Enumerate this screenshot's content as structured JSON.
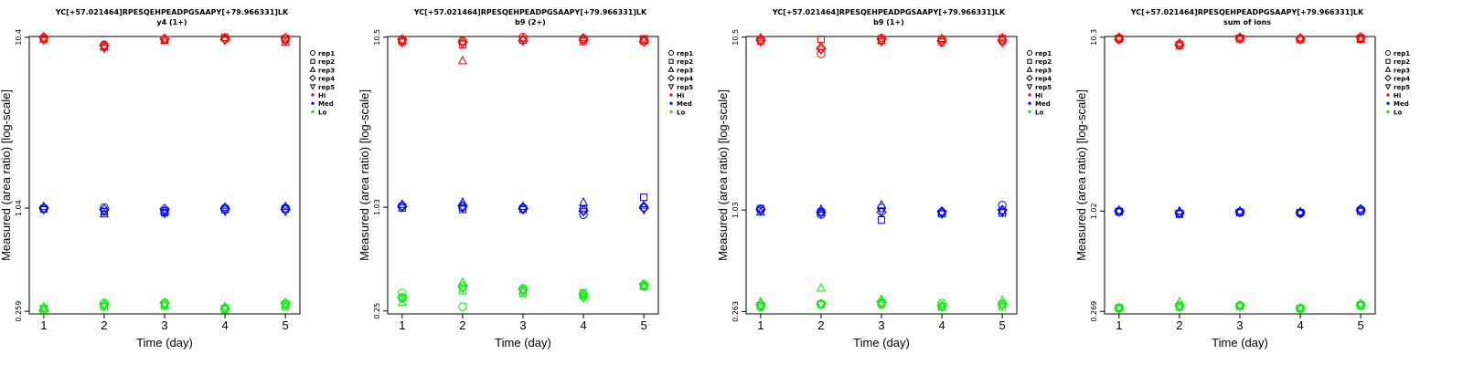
{
  "colors": {
    "Hi": "#ff0000",
    "Med": "#0000ff",
    "Lo": "#00ee00",
    "axis": "#000000"
  },
  "legend": [
    {
      "label": "rep1",
      "symbol": "circle"
    },
    {
      "label": "rep2",
      "symbol": "square"
    },
    {
      "label": "rep3",
      "symbol": "triangle-up"
    },
    {
      "label": "rep4",
      "symbol": "diamond"
    },
    {
      "label": "rep5",
      "symbol": "triangle-down"
    },
    {
      "label": "Hi",
      "symbol": "dot",
      "color": "Hi"
    },
    {
      "label": "Med",
      "symbol": "dot",
      "color": "Med"
    },
    {
      "label": "Lo",
      "symbol": "dot",
      "color": "Lo"
    }
  ],
  "chart_data": [
    {
      "type": "scatter",
      "title": "YC[+57.021464]RPESQEHPEADPGSAAPY[+79.966331]LK",
      "subtitle": "y4 (1+)",
      "xlabel": "Time (day)",
      "ylabel": "Measured (area ratio) [log-scale]",
      "x": [
        1,
        2,
        3,
        4,
        5
      ],
      "xticks": [
        "1",
        "2",
        "3",
        "4",
        "5"
      ],
      "yscale": "log",
      "yticks": [
        "0.259",
        "1.04",
        "10.4"
      ],
      "ylim": [
        0.25,
        10.5
      ],
      "series": [
        {
          "name": "Hi",
          "reps": [
            {
              "rep": "rep1",
              "values": [
                10.3,
                9.4,
                10.1,
                10.2,
                10.0
              ]
            },
            {
              "rep": "rep2",
              "values": [
                10.2,
                9.1,
                10.0,
                10.4,
                10.2
              ]
            },
            {
              "rep": "rep3",
              "values": [
                10.1,
                9.2,
                9.9,
                10.3,
                9.7
              ]
            },
            {
              "rep": "rep4",
              "values": [
                10.4,
                9.3,
                10.2,
                10.1,
                10.3
              ]
            },
            {
              "rep": "rep5",
              "values": [
                10.0,
                9.0,
                10.1,
                10.0,
                9.9
              ]
            }
          ]
        },
        {
          "name": "Med",
          "reps": [
            {
              "rep": "rep1",
              "values": [
                1.04,
                1.05,
                1.0,
                1.04,
                1.04
              ]
            },
            {
              "rep": "rep2",
              "values": [
                1.03,
                0.99,
                0.98,
                1.02,
                1.03
              ]
            },
            {
              "rep": "rep3",
              "values": [
                1.06,
                0.96,
                1.0,
                1.05,
                1.06
              ]
            },
            {
              "rep": "rep4",
              "values": [
                1.04,
                1.02,
                1.03,
                1.03,
                1.02
              ]
            },
            {
              "rep": "rep5",
              "values": [
                1.02,
                1.0,
                0.97,
                1.0,
                1.0
              ]
            }
          ]
        },
        {
          "name": "Lo",
          "reps": [
            {
              "rep": "rep1",
              "values": [
                0.265,
                0.29,
                0.29,
                0.27,
                0.285
              ]
            },
            {
              "rep": "rep2",
              "values": [
                0.27,
                0.275,
                0.28,
                0.265,
                0.275
              ]
            },
            {
              "rep": "rep3",
              "values": [
                0.275,
                0.28,
                0.285,
                0.275,
                0.28
              ]
            },
            {
              "rep": "rep4",
              "values": [
                0.26,
                0.285,
                0.29,
                0.268,
                0.29
              ]
            },
            {
              "rep": "rep5",
              "values": [
                0.268,
                0.278,
                0.282,
                0.27,
                0.283
              ]
            }
          ]
        }
      ]
    },
    {
      "type": "scatter",
      "title": "YC[+57.021464]RPESQEHPEADPGSAAPY[+79.966331]LK",
      "subtitle": "b9 (2+)",
      "xlabel": "Time (day)",
      "ylabel": "Measured (area ratio) [log-scale]",
      "x": [
        1,
        2,
        3,
        4,
        5
      ],
      "xticks": [
        "1",
        "2",
        "3",
        "4",
        "5"
      ],
      "yscale": "log",
      "yticks": [
        "0.25",
        "1.03",
        "10.5"
      ],
      "ylim": [
        0.24,
        10.6
      ],
      "series": [
        {
          "name": "Hi",
          "reps": [
            {
              "rep": "rep1",
              "values": [
                9.8,
                10.0,
                10.5,
                10.3,
                10.2
              ]
            },
            {
              "rep": "rep2",
              "values": [
                10.0,
                9.5,
                10.1,
                9.9,
                10.0
              ]
            },
            {
              "rep": "rep3",
              "values": [
                10.1,
                7.6,
                10.3,
                10.4,
                10.1
              ]
            },
            {
              "rep": "rep4",
              "values": [
                10.2,
                9.8,
                10.0,
                10.1,
                9.9
              ]
            },
            {
              "rep": "rep5",
              "values": [
                9.9,
                9.7,
                10.2,
                10.0,
                10.3
              ]
            }
          ]
        },
        {
          "name": "Med",
          "reps": [
            {
              "rep": "rep1",
              "values": [
                1.05,
                1.03,
                1.02,
                0.93,
                1.03
              ]
            },
            {
              "rep": "rep2",
              "values": [
                1.02,
                1.0,
                1.0,
                1.0,
                1.18
              ]
            },
            {
              "rep": "rep3",
              "values": [
                1.07,
                1.1,
                1.04,
                1.1,
                1.06
              ]
            },
            {
              "rep": "rep4",
              "values": [
                1.04,
                1.05,
                1.01,
                0.98,
                1.02
              ]
            },
            {
              "rep": "rep5",
              "values": [
                1.03,
                1.02,
                1.0,
                0.97,
                1.0
              ]
            }
          ]
        },
        {
          "name": "Lo",
          "reps": [
            {
              "rep": "rep1",
              "values": [
                0.32,
                0.265,
                0.34,
                0.305,
                0.355
              ]
            },
            {
              "rep": "rep2",
              "values": [
                0.3,
                0.33,
                0.32,
                0.32,
                0.35
              ]
            },
            {
              "rep": "rep3",
              "values": [
                0.28,
                0.37,
                0.33,
                0.31,
                0.35
              ]
            },
            {
              "rep": "rep4",
              "values": [
                0.3,
                0.35,
                0.335,
                0.315,
                0.36
              ]
            },
            {
              "rep": "rep5",
              "values": [
                0.295,
                0.34,
                0.33,
                0.3,
                0.35
              ]
            }
          ]
        }
      ]
    },
    {
      "type": "scatter",
      "title": "YC[+57.021464]RPESQEHPEADPGSAAPY[+79.966331]LK",
      "subtitle": "b9 (1+)",
      "xlabel": "Time (day)",
      "ylabel": "Measured (area ratio) [log-scale]",
      "x": [
        1,
        2,
        3,
        4,
        5
      ],
      "xticks": [
        "1",
        "2",
        "3",
        "4",
        "5"
      ],
      "yscale": "log",
      "yticks": [
        "0.263",
        "1.03",
        "10.5"
      ],
      "ylim": [
        0.255,
        10.6
      ],
      "series": [
        {
          "name": "Hi",
          "reps": [
            {
              "rep": "rep1",
              "values": [
                10.2,
                8.4,
                10.4,
                9.8,
                10.0
              ]
            },
            {
              "rep": "rep2",
              "values": [
                10.0,
                10.2,
                10.1,
                10.2,
                10.3
              ]
            },
            {
              "rep": "rep3",
              "values": [
                10.4,
                9.3,
                10.0,
                10.3,
                10.4
              ]
            },
            {
              "rep": "rep4",
              "values": [
                10.1,
                9.0,
                10.2,
                10.0,
                10.1
              ]
            },
            {
              "rep": "rep5",
              "values": [
                9.9,
                8.9,
                9.9,
                9.9,
                9.8
              ]
            }
          ]
        },
        {
          "name": "Med",
          "reps": [
            {
              "rep": "rep1",
              "values": [
                1.03,
                0.97,
                1.06,
                1.0,
                1.1
              ]
            },
            {
              "rep": "rep2",
              "values": [
                1.05,
                1.0,
                0.9,
                0.98,
                0.99
              ]
            },
            {
              "rep": "rep3",
              "values": [
                1.0,
                1.04,
                1.1,
                1.0,
                1.02
              ]
            },
            {
              "rep": "rep4",
              "values": [
                1.04,
                1.0,
                1.0,
                1.01,
                1.03
              ]
            },
            {
              "rep": "rep5",
              "values": [
                1.02,
                0.99,
                1.01,
                0.98,
                1.0
              ]
            }
          ]
        },
        {
          "name": "Lo",
          "reps": [
            {
              "rep": "rep1",
              "values": [
                0.28,
                0.29,
                0.29,
                0.295,
                0.29
              ]
            },
            {
              "rep": "rep2",
              "values": [
                0.285,
                0.29,
                0.295,
                0.28,
                0.28
              ]
            },
            {
              "rep": "rep3",
              "values": [
                0.3,
                0.36,
                0.31,
                0.28,
                0.305
              ]
            },
            {
              "rep": "rep4",
              "values": [
                0.29,
                0.292,
                0.3,
                0.285,
                0.29
              ]
            },
            {
              "rep": "rep5",
              "values": [
                0.285,
                0.29,
                0.292,
                0.282,
                0.288
              ]
            }
          ]
        }
      ]
    },
    {
      "type": "scatter",
      "title": "YC[+57.021464]RPESQEHPEADPGSAAPY[+79.966331]LK",
      "subtitle": "sum of ions",
      "xlabel": "Time (day)",
      "ylabel": "Measured (area ratio) [log-scale]",
      "x": [
        1,
        2,
        3,
        4,
        5
      ],
      "xticks": [
        "1",
        "2",
        "3",
        "4",
        "5"
      ],
      "yscale": "log",
      "yticks": [
        "0.269",
        "1.02",
        "10.3"
      ],
      "ylim": [
        0.26,
        10.4
      ],
      "series": [
        {
          "name": "Hi",
          "reps": [
            {
              "rep": "rep1",
              "values": [
                10.2,
                9.4,
                10.2,
                10.1,
                10.1
              ]
            },
            {
              "rep": "rep2",
              "values": [
                10.1,
                9.2,
                10.1,
                10.0,
                10.2
              ]
            },
            {
              "rep": "rep3",
              "values": [
                10.3,
                9.5,
                10.3,
                10.2,
                10.0
              ]
            },
            {
              "rep": "rep4",
              "values": [
                10.0,
                9.3,
                10.1,
                10.1,
                10.3
              ]
            },
            {
              "rep": "rep5",
              "values": [
                10.1,
                9.3,
                10.2,
                10.0,
                10.1
              ]
            }
          ]
        },
        {
          "name": "Med",
          "reps": [
            {
              "rep": "rep1",
              "values": [
                1.02,
                0.99,
                1.01,
                0.99,
                1.04
              ]
            },
            {
              "rep": "rep2",
              "values": [
                1.01,
                0.98,
                1.0,
                1.0,
                1.02
              ]
            },
            {
              "rep": "rep3",
              "values": [
                1.03,
                1.02,
                1.02,
                1.01,
                1.05
              ]
            },
            {
              "rep": "rep4",
              "values": [
                1.02,
                1.0,
                1.01,
                1.0,
                1.03
              ]
            },
            {
              "rep": "rep5",
              "values": [
                1.01,
                0.99,
                1.0,
                0.99,
                1.02
              ]
            }
          ]
        },
        {
          "name": "Lo",
          "reps": [
            {
              "rep": "rep1",
              "values": [
                0.28,
                0.29,
                0.29,
                0.28,
                0.295
              ]
            },
            {
              "rep": "rep2",
              "values": [
                0.282,
                0.285,
                0.288,
                0.279,
                0.29
              ]
            },
            {
              "rep": "rep3",
              "values": [
                0.283,
                0.305,
                0.292,
                0.281,
                0.298
              ]
            },
            {
              "rep": "rep4",
              "values": [
                0.281,
                0.288,
                0.29,
                0.28,
                0.293
              ]
            },
            {
              "rep": "rep5",
              "values": [
                0.28,
                0.287,
                0.289,
                0.279,
                0.292
              ]
            }
          ]
        }
      ]
    }
  ]
}
